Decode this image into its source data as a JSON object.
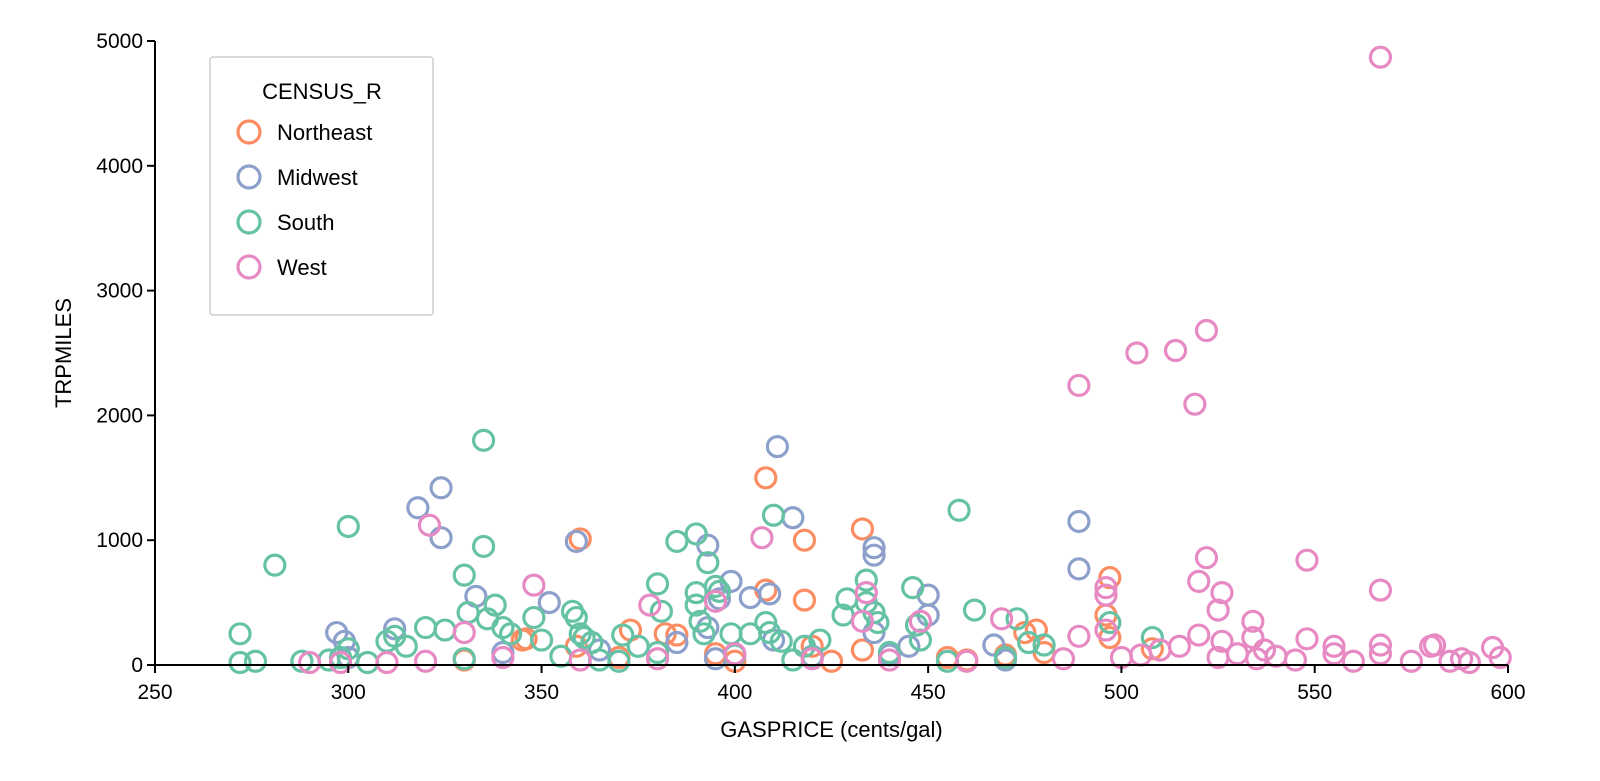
{
  "chart_data": {
    "type": "scatter",
    "title": "",
    "xlabel": "GASPRICE (cents/gal)",
    "ylabel": "TRPMILES",
    "xlim": [
      250,
      600
    ],
    "ylim": [
      0,
      5000
    ],
    "xticks": [
      250,
      300,
      350,
      400,
      450,
      500,
      550,
      600
    ],
    "yticks": [
      0,
      1000,
      2000,
      3000,
      4000,
      5000
    ],
    "grid": false,
    "marker": "open-circle",
    "legend": {
      "title": "CENSUS_R",
      "position": "top-left"
    },
    "series": [
      {
        "name": "Northeast",
        "color": "#fc8d62",
        "points": [
          [
            360,
            1010
          ],
          [
            408,
            1500
          ],
          [
            408,
            600
          ],
          [
            418,
            1000
          ],
          [
            418,
            520
          ],
          [
            433,
            1090
          ],
          [
            497,
            700
          ],
          [
            496,
            400
          ],
          [
            497,
            220
          ],
          [
            508,
            130
          ],
          [
            475,
            260
          ],
          [
            478,
            280
          ],
          [
            373,
            280
          ],
          [
            382,
            250
          ],
          [
            385,
            240
          ],
          [
            345,
            200
          ],
          [
            346,
            210
          ],
          [
            359,
            150
          ],
          [
            420,
            150
          ],
          [
            433,
            120
          ],
          [
            455,
            60
          ],
          [
            460,
            40
          ],
          [
            470,
            80
          ],
          [
            480,
            100
          ],
          [
            395,
            90
          ],
          [
            330,
            40
          ],
          [
            370,
            60
          ],
          [
            400,
            30
          ],
          [
            425,
            30
          ]
        ]
      },
      {
        "name": "Midwest",
        "color": "#8da0cb",
        "points": [
          [
            297,
            260
          ],
          [
            299,
            190
          ],
          [
            312,
            290
          ],
          [
            318,
            1260
          ],
          [
            324,
            1420
          ],
          [
            324,
            1020
          ],
          [
            333,
            550
          ],
          [
            352,
            500
          ],
          [
            359,
            990
          ],
          [
            393,
            960
          ],
          [
            396,
            530
          ],
          [
            399,
            670
          ],
          [
            404,
            540
          ],
          [
            409,
            570
          ],
          [
            411,
            1750
          ],
          [
            415,
            1180
          ],
          [
            436,
            940
          ],
          [
            436,
            880
          ],
          [
            450,
            560
          ],
          [
            450,
            400
          ],
          [
            467,
            160
          ],
          [
            489,
            1150
          ],
          [
            489,
            770
          ],
          [
            436,
            260
          ],
          [
            393,
            300
          ],
          [
            385,
            180
          ],
          [
            410,
            200
          ],
          [
            445,
            150
          ],
          [
            300,
            60
          ],
          [
            340,
            100
          ],
          [
            365,
            120
          ],
          [
            395,
            50
          ],
          [
            420,
            70
          ],
          [
            440,
            80
          ],
          [
            470,
            40
          ]
        ]
      },
      {
        "name": "South",
        "color": "#66c2a5",
        "points": [
          [
            272,
            250
          ],
          [
            272,
            20
          ],
          [
            276,
            30
          ],
          [
            281,
            800
          ],
          [
            288,
            30
          ],
          [
            295,
            40
          ],
          [
            298,
            60
          ],
          [
            300,
            1110
          ],
          [
            300,
            130
          ],
          [
            310,
            190
          ],
          [
            312,
            230
          ],
          [
            315,
            150
          ],
          [
            320,
            300
          ],
          [
            325,
            280
          ],
          [
            330,
            720
          ],
          [
            331,
            420
          ],
          [
            335,
            1800
          ],
          [
            335,
            950
          ],
          [
            336,
            370
          ],
          [
            338,
            480
          ],
          [
            340,
            300
          ],
          [
            342,
            250
          ],
          [
            348,
            380
          ],
          [
            350,
            200
          ],
          [
            358,
            430
          ],
          [
            359,
            380
          ],
          [
            360,
            250
          ],
          [
            361,
            220
          ],
          [
            363,
            180
          ],
          [
            371,
            240
          ],
          [
            375,
            150
          ],
          [
            380,
            650
          ],
          [
            381,
            430
          ],
          [
            385,
            990
          ],
          [
            390,
            1050
          ],
          [
            390,
            580
          ],
          [
            390,
            480
          ],
          [
            391,
            350
          ],
          [
            392,
            250
          ],
          [
            393,
            820
          ],
          [
            395,
            630
          ],
          [
            396,
            590
          ],
          [
            399,
            250
          ],
          [
            404,
            250
          ],
          [
            408,
            340
          ],
          [
            409,
            260
          ],
          [
            410,
            1200
          ],
          [
            412,
            190
          ],
          [
            418,
            150
          ],
          [
            422,
            200
          ],
          [
            428,
            400
          ],
          [
            429,
            530
          ],
          [
            434,
            680
          ],
          [
            434,
            500
          ],
          [
            436,
            420
          ],
          [
            437,
            340
          ],
          [
            446,
            620
          ],
          [
            447,
            320
          ],
          [
            448,
            200
          ],
          [
            458,
            1240
          ],
          [
            462,
            440
          ],
          [
            473,
            370
          ],
          [
            476,
            180
          ],
          [
            480,
            160
          ],
          [
            497,
            340
          ],
          [
            508,
            220
          ],
          [
            380,
            100
          ],
          [
            400,
            80
          ],
          [
            420,
            60
          ],
          [
            440,
            100
          ],
          [
            455,
            30
          ],
          [
            470,
            60
          ],
          [
            305,
            20
          ],
          [
            330,
            50
          ],
          [
            355,
            70
          ],
          [
            370,
            30
          ],
          [
            365,
            40
          ],
          [
            415,
            40
          ]
        ]
      },
      {
        "name": "West",
        "color": "#e78ac3",
        "points": [
          [
            298,
            20
          ],
          [
            321,
            1120
          ],
          [
            330,
            260
          ],
          [
            348,
            640
          ],
          [
            378,
            480
          ],
          [
            395,
            510
          ],
          [
            407,
            1020
          ],
          [
            434,
            580
          ],
          [
            433,
            350
          ],
          [
            448,
            350
          ],
          [
            469,
            370
          ],
          [
            489,
            2240
          ],
          [
            489,
            230
          ],
          [
            496,
            620
          ],
          [
            496,
            560
          ],
          [
            496,
            280
          ],
          [
            504,
            2500
          ],
          [
            514,
            2520
          ],
          [
            519,
            2090
          ],
          [
            522,
            2680
          ],
          [
            522,
            860
          ],
          [
            520,
            670
          ],
          [
            520,
            240
          ],
          [
            525,
            440
          ],
          [
            526,
            580
          ],
          [
            526,
            190
          ],
          [
            534,
            350
          ],
          [
            534,
            220
          ],
          [
            537,
            120
          ],
          [
            548,
            840
          ],
          [
            548,
            210
          ],
          [
            555,
            150
          ],
          [
            555,
            90
          ],
          [
            567,
            4870
          ],
          [
            567,
            600
          ],
          [
            567,
            160
          ],
          [
            567,
            90
          ],
          [
            580,
            150
          ],
          [
            581,
            160
          ],
          [
            588,
            50
          ],
          [
            596,
            140
          ],
          [
            598,
            60
          ],
          [
            510,
            120
          ],
          [
            515,
            150
          ],
          [
            505,
            80
          ],
          [
            530,
            90
          ],
          [
            540,
            70
          ],
          [
            560,
            30
          ],
          [
            500,
            60
          ],
          [
            485,
            50
          ],
          [
            460,
            30
          ],
          [
            440,
            40
          ],
          [
            420,
            50
          ],
          [
            400,
            90
          ],
          [
            380,
            50
          ],
          [
            360,
            40
          ],
          [
            340,
            60
          ],
          [
            320,
            30
          ],
          [
            310,
            20
          ],
          [
            290,
            20
          ],
          [
            575,
            30
          ],
          [
            585,
            30
          ],
          [
            590,
            20
          ],
          [
            545,
            40
          ],
          [
            535,
            50
          ],
          [
            525,
            60
          ]
        ]
      }
    ]
  }
}
